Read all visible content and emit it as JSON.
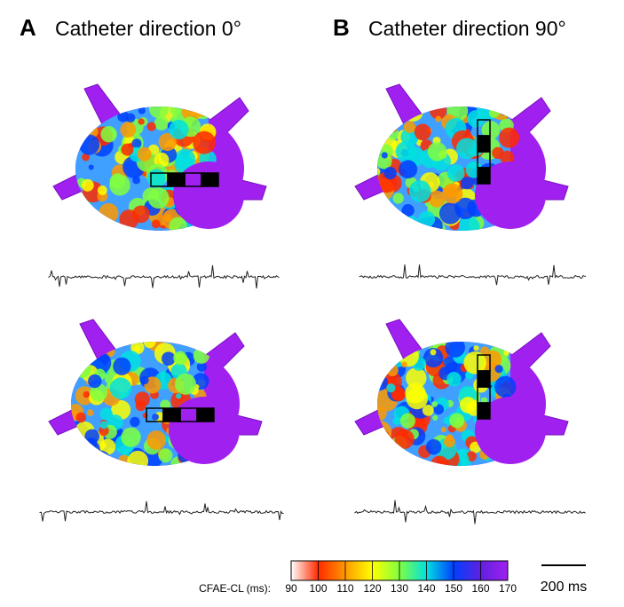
{
  "panels": [
    {
      "letter": "A",
      "title": "Catheter direction 0°"
    },
    {
      "letter": "B",
      "title": "Catheter direction 90°"
    }
  ],
  "colorbar": {
    "label": "CFAE-CL (ms):",
    "ticks": [
      90,
      100,
      110,
      120,
      130,
      140,
      150,
      160,
      170
    ],
    "colors": [
      "#ffffff",
      "#ff2a00",
      "#ff9900",
      "#ffff00",
      "#80ff40",
      "#00e0e0",
      "#0040ff",
      "#6020e0",
      "#a020f0"
    ]
  },
  "scale_bar": {
    "label": "200 ms"
  }
}
